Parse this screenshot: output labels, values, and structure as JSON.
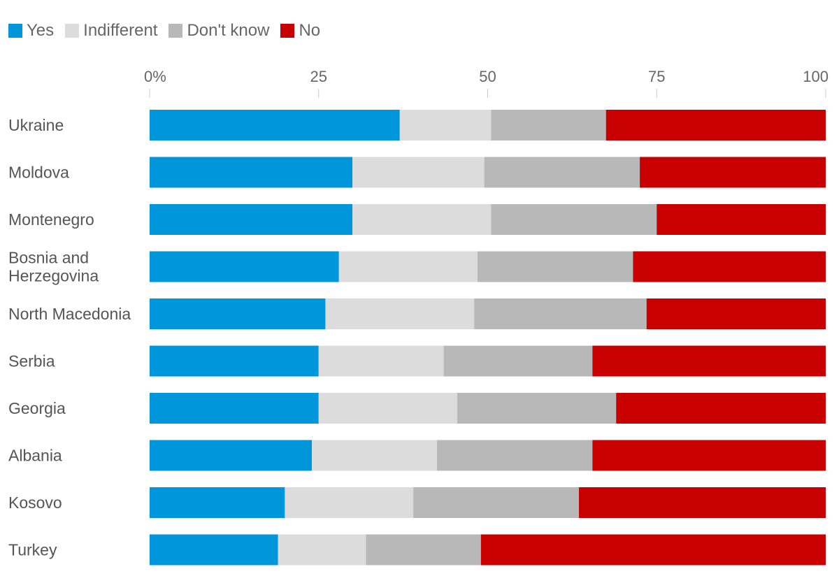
{
  "chart_data": {
    "type": "bar",
    "orientation": "horizontal",
    "stacked": true,
    "xlim": [
      0,
      100
    ],
    "xticks": [
      "0%",
      "25",
      "50",
      "75",
      "100"
    ],
    "categories": [
      "Ukraine",
      "Moldova",
      "Montenegro",
      "Bosnia and Herzegovina",
      "North Macedonia",
      "Serbia",
      "Georgia",
      "Albania",
      "Kosovo",
      "Turkey"
    ],
    "category_lines": [
      [
        "Ukraine"
      ],
      [
        "Moldova"
      ],
      [
        "Montenegro"
      ],
      [
        "Bosnia and",
        "Herzegovina"
      ],
      [
        "North Macedonia"
      ],
      [
        "Serbia"
      ],
      [
        "Georgia"
      ],
      [
        "Albania"
      ],
      [
        "Kosovo"
      ],
      [
        "Turkey"
      ]
    ],
    "legend_position": "top-left",
    "grid": false,
    "series": [
      {
        "name": "Yes",
        "color": "#0096db",
        "values": [
          37,
          30,
          30,
          28,
          26,
          25,
          25,
          24,
          20,
          19
        ]
      },
      {
        "name": "Indifferent",
        "color": "#dcdcdc",
        "values": [
          13.5,
          19.5,
          20.5,
          20.5,
          22,
          18.5,
          20.5,
          18.5,
          19,
          13
        ]
      },
      {
        "name": "Don't know",
        "color": "#b8b8b8",
        "values": [
          17,
          23,
          24.5,
          23,
          25.5,
          22,
          23.5,
          23,
          24.5,
          17
        ]
      },
      {
        "name": "No",
        "color": "#c80000",
        "values": [
          32.5,
          27.5,
          25,
          28.5,
          26.5,
          34.5,
          31,
          34.5,
          36.5,
          51
        ]
      }
    ]
  }
}
